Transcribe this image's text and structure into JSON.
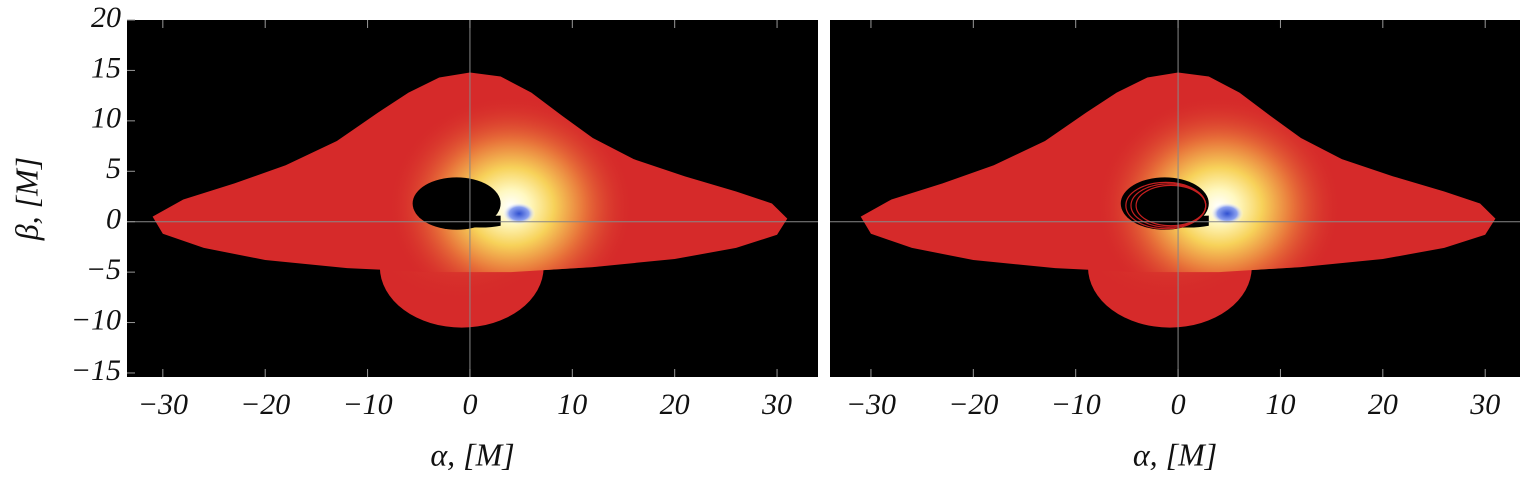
{
  "chart_data": [
    {
      "type": "image",
      "xlabel": "α, [M]",
      "ylabel": "β, [M]",
      "xlim": [
        -33.5,
        34
      ],
      "ylim": [
        -15.4,
        20
      ],
      "xticks": [
        {
          "value": -30,
          "label": "−30"
        },
        {
          "value": -20,
          "label": "−20"
        },
        {
          "value": -10,
          "label": "−10"
        },
        0,
        10,
        20,
        30
      ],
      "yticks": [
        {
          "value": -15,
          "label": "−15"
        },
        {
          "value": -10,
          "label": "−10"
        },
        {
          "value": -5,
          "label": "−5"
        },
        0,
        5,
        10,
        15,
        20
      ]
    },
    {
      "type": "image",
      "xlabel": "α, [M]",
      "xlim": [
        -34,
        33.4
      ],
      "ylim": [
        -15.4,
        20
      ],
      "xticks": [
        {
          "value": -30,
          "label": "−30"
        },
        {
          "value": -20,
          "label": "−20"
        },
        {
          "value": -10,
          "label": "−10"
        },
        0,
        10,
        20,
        30
      ]
    }
  ]
}
